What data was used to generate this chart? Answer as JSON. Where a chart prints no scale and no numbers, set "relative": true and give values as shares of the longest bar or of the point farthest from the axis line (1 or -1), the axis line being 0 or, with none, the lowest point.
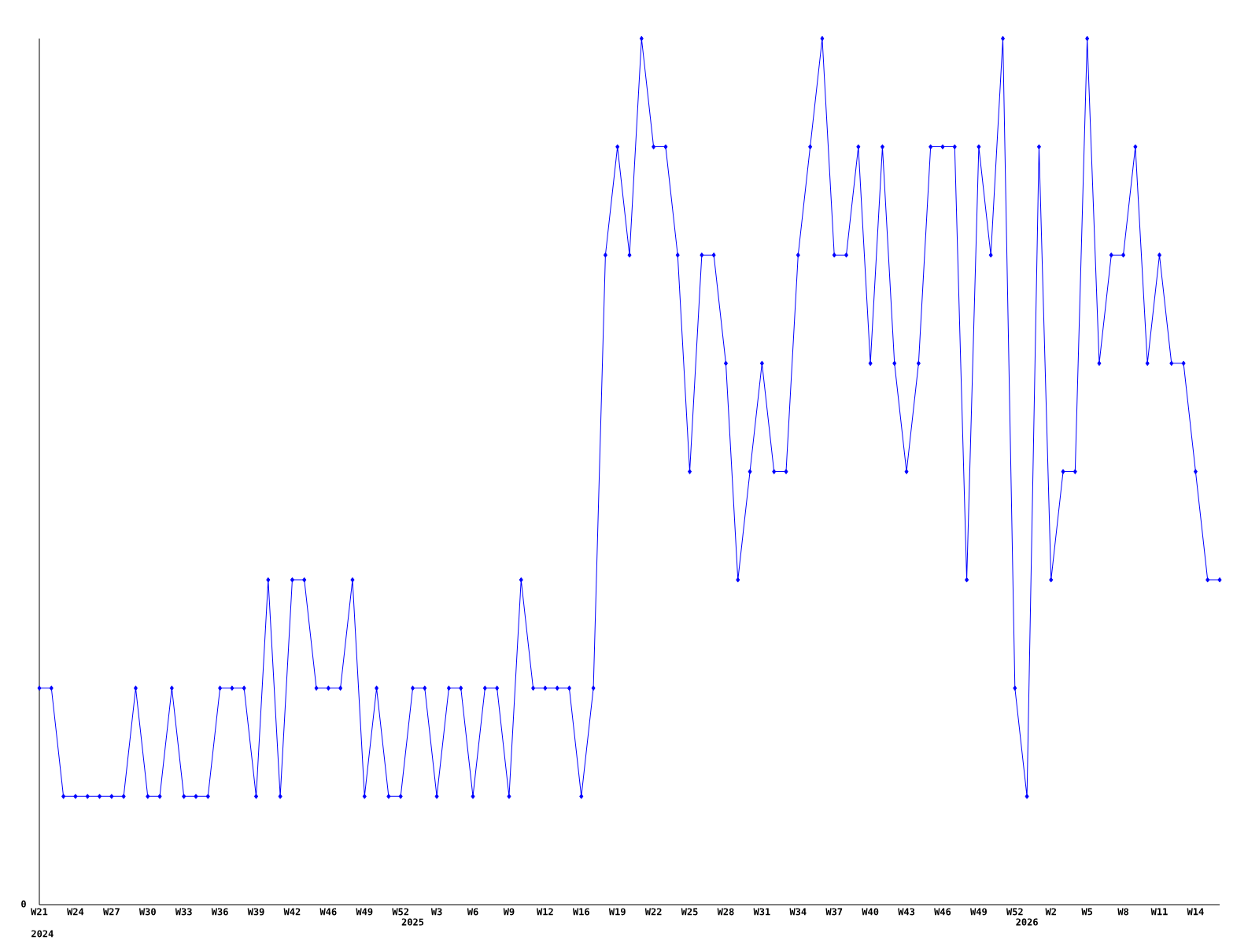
{
  "chart_data": {
    "type": "line",
    "relative": true,
    "color": "#0000ff",
    "marker": "diamond",
    "categories": [
      "W21",
      null,
      null,
      "W24",
      null,
      null,
      "W27",
      null,
      null,
      "W30",
      null,
      null,
      "W33",
      null,
      null,
      "W36",
      null,
      null,
      "W39",
      null,
      null,
      "W42",
      null,
      null,
      "W46",
      null,
      null,
      "W49",
      null,
      null,
      "W52",
      "2025",
      null,
      "W3",
      null,
      null,
      "W6",
      null,
      null,
      "W9",
      null,
      null,
      "W12",
      null,
      null,
      "W16",
      null,
      null,
      "W19",
      null,
      null,
      "W22",
      null,
      null,
      "W25",
      null,
      null,
      "W28",
      null,
      null,
      "W31",
      null,
      null,
      "W34",
      null,
      null,
      "W37",
      null,
      null,
      "W40",
      null,
      null,
      "W43",
      null,
      null,
      "W46",
      null,
      null,
      "W49",
      null,
      null,
      "W52",
      "2026",
      null,
      "W2",
      null,
      null,
      "W5",
      null,
      null,
      "W8",
      null,
      null,
      "W11",
      null,
      null,
      "W14",
      null,
      null
    ],
    "values": [
      0.25,
      0.25,
      0.125,
      0.125,
      0.125,
      0.125,
      0.125,
      0.125,
      0.25,
      0.125,
      0.125,
      0.25,
      0.125,
      0.125,
      0.125,
      0.25,
      0.25,
      0.25,
      0.125,
      0.375,
      0.125,
      0.375,
      0.375,
      0.25,
      0.25,
      0.25,
      0.375,
      0.125,
      0.25,
      0.125,
      0.125,
      0.25,
      0.25,
      0.125,
      0.25,
      0.25,
      0.125,
      0.25,
      0.25,
      0.125,
      0.375,
      0.25,
      0.25,
      0.25,
      0.25,
      0.125,
      0.25,
      0.75,
      0.875,
      0.75,
      1,
      0.875,
      0.875,
      0.75,
      0.5,
      0.75,
      0.75,
      0.625,
      0.375,
      0.5,
      0.625,
      0.5,
      0.5,
      0.75,
      0.875,
      1,
      0.75,
      0.75,
      0.875,
      0.625,
      0.875,
      0.625,
      0.5,
      0.625,
      0.875,
      0.875,
      0.875,
      0.375,
      0.875,
      0.75,
      1,
      0.25,
      0.125,
      0.875,
      0.375,
      0.5,
      0.5,
      1,
      0.625,
      0.75,
      0.75,
      0.875,
      0.625,
      0.75,
      0.625,
      0.625,
      0.5,
      0.375,
      0.375
    ],
    "annotations": [
      "2024",
      "0"
    ]
  }
}
